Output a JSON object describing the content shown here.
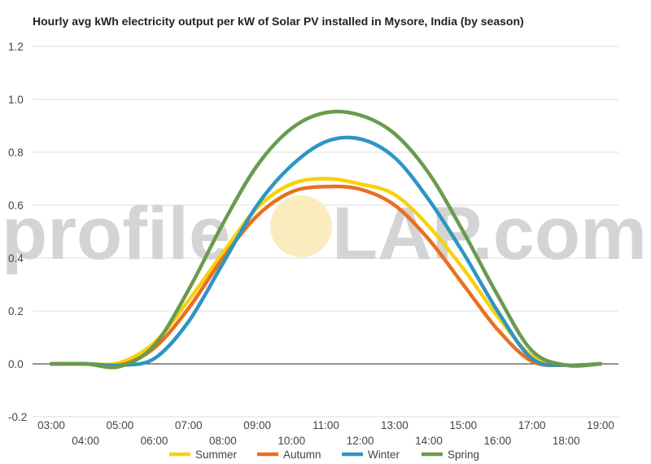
{
  "chart_data": {
    "type": "line",
    "title": "Hourly avg kWh electricity output per kW of Solar PV installed in Mysore, India (by season)",
    "xlabel": "",
    "ylabel": "",
    "x": [
      "03:00",
      "04:00",
      "05:00",
      "06:00",
      "07:00",
      "08:00",
      "09:00",
      "10:00",
      "11:00",
      "12:00",
      "13:00",
      "14:00",
      "15:00",
      "16:00",
      "17:00",
      "18:00",
      "19:00"
    ],
    "x_tick_labels": [
      "03:00",
      "04:00",
      "05:00",
      "06:00",
      "07:00",
      "08:00",
      "09:00",
      "10:00",
      "11:00",
      "12:00",
      "13:00",
      "14:00",
      "15:00",
      "16:00",
      "17:00",
      "18:00",
      "19:00"
    ],
    "ylim": [
      -0.2,
      1.2
    ],
    "y_ticks": [
      -0.2,
      0.0,
      0.2,
      0.4,
      0.6,
      0.8,
      1.0,
      1.2
    ],
    "grid": true,
    "legend_position": "bottom",
    "series": [
      {
        "name": "Summer",
        "color": "#f7d20b",
        "values": [
          0,
          0,
          0.005,
          0.08,
          0.24,
          0.42,
          0.59,
          0.68,
          0.7,
          0.68,
          0.64,
          0.52,
          0.36,
          0.18,
          0.03,
          -0.005,
          0
        ]
      },
      {
        "name": "Autumn",
        "color": "#e8701f",
        "values": [
          0,
          0,
          -0.005,
          0.06,
          0.21,
          0.4,
          0.56,
          0.65,
          0.67,
          0.66,
          0.6,
          0.47,
          0.3,
          0.13,
          0.01,
          -0.005,
          0
        ]
      },
      {
        "name": "Winter",
        "color": "#2e95c3",
        "values": [
          0,
          0,
          -0.005,
          0.02,
          0.16,
          0.38,
          0.6,
          0.75,
          0.84,
          0.85,
          0.78,
          0.62,
          0.42,
          0.2,
          0.02,
          -0.005,
          0
        ]
      },
      {
        "name": "Spring",
        "color": "#6a9a4f",
        "values": [
          0,
          0,
          -0.01,
          0.07,
          0.28,
          0.53,
          0.75,
          0.89,
          0.95,
          0.94,
          0.87,
          0.72,
          0.5,
          0.26,
          0.05,
          -0.005,
          0
        ]
      }
    ]
  },
  "watermark": {
    "text_left": "profile",
    "text_right": "LAP.com",
    "sun_color": "#fbecc0"
  }
}
